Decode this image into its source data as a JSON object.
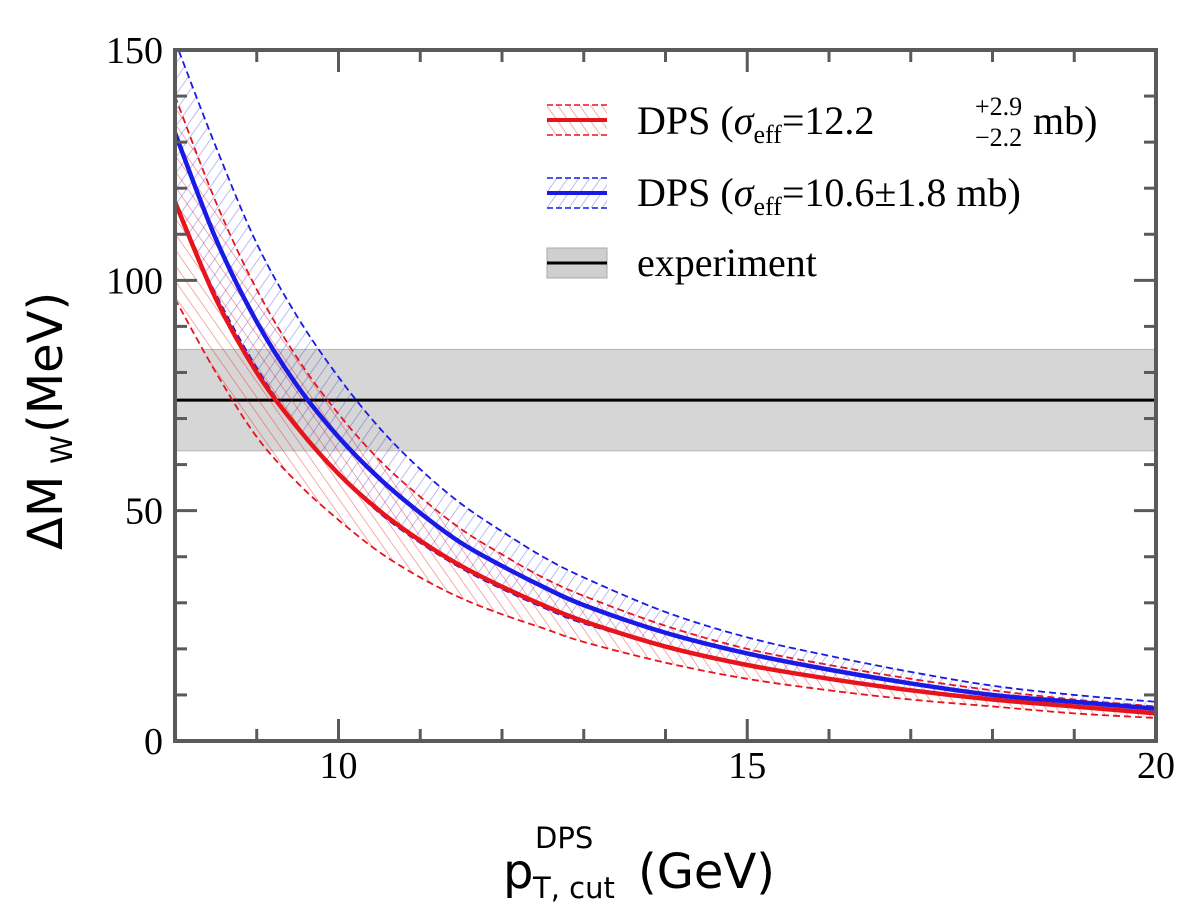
{
  "chart_data": {
    "type": "line",
    "xlabel": {
      "base": "p",
      "sup": "DPS",
      "sub": "T, cut",
      "unit": "(GeV)"
    },
    "ylabel": {
      "base": "ΔM",
      "sub": "W",
      "unit": "(MeV)"
    },
    "xlim": [
      8,
      20
    ],
    "ylim": [
      0,
      150
    ],
    "x_ticks": [
      10,
      15,
      20
    ],
    "y_ticks": [
      0,
      50,
      100,
      150
    ],
    "grid": false,
    "legend_position": "top-right",
    "x": [
      8,
      8.5,
      9,
      9.5,
      10,
      10.5,
      11,
      11.5,
      12,
      12.5,
      13,
      14,
      15,
      16,
      17,
      18,
      19,
      20
    ],
    "series": [
      {
        "name_parts": {
          "prefix": "DPS (",
          "sym": "σ",
          "sub": "eff",
          "eq": "=12.2",
          "sup": "+2.9",
          "sub2": "−2.2",
          "suffix": " mb)"
        },
        "color": "#e8141c",
        "central": [
          117,
          96,
          80,
          68,
          58,
          50,
          43.5,
          38,
          33.5,
          29.5,
          26,
          20.5,
          16.5,
          13.5,
          11,
          9,
          7.5,
          6
        ],
        "upper": [
          140,
          117,
          98,
          83,
          71,
          61,
          53,
          46,
          40.5,
          35.5,
          31.5,
          25,
          20,
          16.5,
          13.5,
          11,
          9,
          7.5
        ],
        "lower": [
          96,
          80,
          66,
          56,
          48,
          41,
          35.5,
          31,
          27.5,
          24.5,
          21.5,
          17,
          13.5,
          11,
          9,
          7.5,
          6,
          5
        ]
      },
      {
        "name_parts": {
          "prefix": "DPS (",
          "sym": "σ",
          "sub": "eff",
          "eq": "=10.6±1.8 mb)"
        },
        "color": "#1a1ae6",
        "central": [
          132,
          109,
          91,
          77,
          66,
          57,
          49.5,
          43,
          38,
          33.5,
          29.5,
          23.5,
          19,
          15.5,
          12.5,
          10,
          8.5,
          7
        ],
        "upper": [
          152,
          129,
          108,
          92,
          79,
          68,
          59,
          51.5,
          45.5,
          40,
          35.5,
          28,
          22.5,
          18.5,
          15,
          12,
          10,
          8.5
        ],
        "lower": [
          116,
          97,
          81,
          68,
          58,
          49.5,
          43,
          37.5,
          33,
          29,
          25.5,
          20.5,
          16.5,
          13.5,
          11,
          9,
          7.5,
          6
        ]
      }
    ],
    "experiment": {
      "name": "experiment",
      "value": 74,
      "band": [
        63,
        85
      ]
    }
  }
}
